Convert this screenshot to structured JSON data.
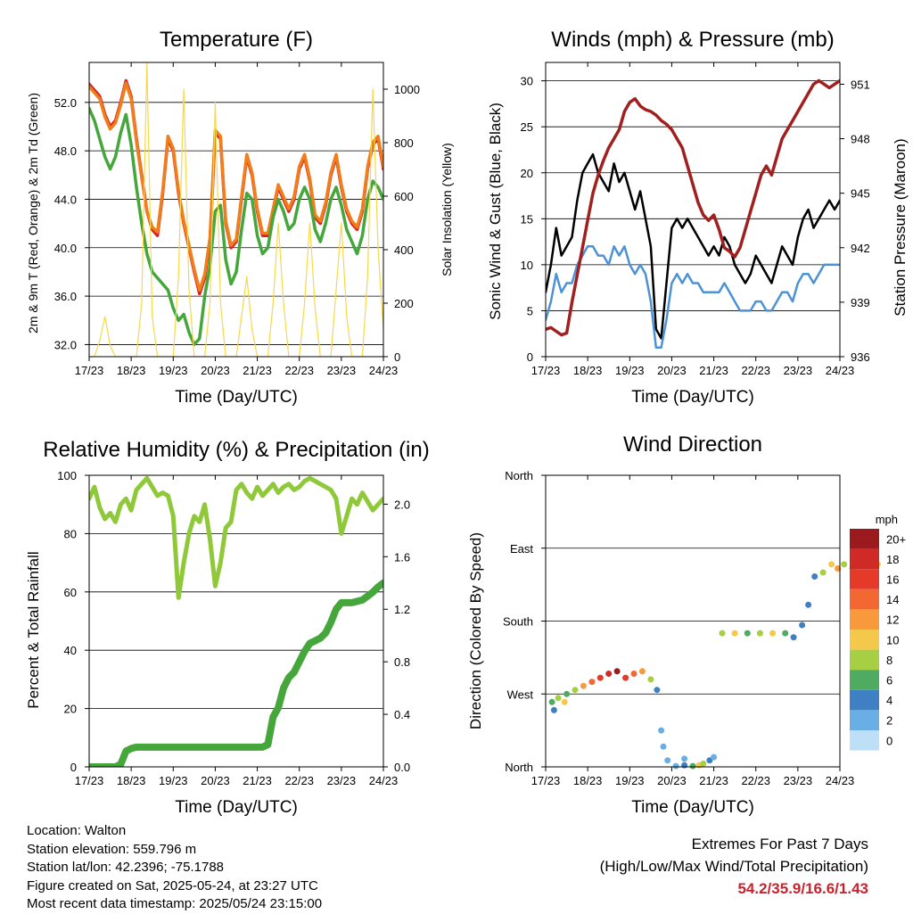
{
  "chart_data": [
    {
      "type": "line",
      "title": "Temperature (F)",
      "xlabel": "Time (Day/UTC)",
      "ylabel": "2m & 9m T (Red, Orange) & 2m Td (Green)",
      "y2label": "Solar Insolation (Yellow)",
      "x_ticks": [
        "17/23",
        "18/23",
        "19/23",
        "20/23",
        "21/23",
        "22/23",
        "23/23",
        "24/23"
      ],
      "y_ticks": [
        "32.0",
        "36.0",
        "40.0",
        "44.0",
        "48.0",
        "52.0"
      ],
      "y2_ticks": [
        "0",
        "200",
        "400",
        "600",
        "800",
        "1000"
      ],
      "ylim": [
        31.0,
        55.3
      ],
      "y2lim": [
        0,
        1100
      ],
      "grid": "horizontal",
      "series": [
        {
          "color": "#d9211f",
          "values": [
            53.5,
            53.0,
            52.5,
            51.0,
            50.0,
            50.5,
            52.0,
            53.8,
            52.5,
            49.0,
            46.0,
            43.0,
            41.5,
            41.0,
            44.5,
            49.0,
            48.0,
            44.5,
            42.0,
            40.0,
            38.0,
            36.2,
            37.5,
            40.5,
            49.5,
            49.0,
            42.0,
            40.0,
            40.5,
            44.0,
            47.5,
            46.0,
            43.0,
            41.0,
            41.0,
            43.0,
            45.0,
            44.0,
            43.0,
            44.0,
            46.5,
            47.5,
            45.5,
            42.5,
            42.0,
            43.5,
            46.0,
            47.5,
            45.0,
            43.0,
            42.0,
            41.5,
            43.0,
            46.5,
            48.5,
            49.0,
            46.5
          ]
        },
        {
          "color": "#f07e1c",
          "values": [
            53.3,
            52.8,
            52.3,
            50.8,
            49.8,
            50.3,
            51.8,
            53.6,
            52.3,
            48.8,
            45.8,
            43.0,
            41.7,
            41.3,
            44.7,
            49.2,
            48.2,
            44.7,
            42.2,
            40.2,
            38.2,
            36.5,
            37.8,
            40.8,
            49.7,
            49.2,
            42.2,
            40.2,
            40.7,
            44.2,
            47.7,
            46.2,
            43.2,
            41.2,
            41.2,
            43.2,
            45.2,
            44.2,
            43.2,
            44.2,
            46.7,
            47.7,
            45.7,
            42.7,
            42.2,
            43.7,
            46.2,
            47.7,
            45.2,
            43.2,
            42.2,
            41.7,
            43.2,
            46.7,
            48.7,
            49.2,
            46.7
          ]
        },
        {
          "color": "#45a63b",
          "values": [
            51.5,
            50.5,
            49.0,
            47.5,
            46.5,
            47.5,
            49.5,
            51.0,
            48.5,
            45.0,
            42.0,
            39.5,
            38.0,
            37.5,
            37.0,
            36.5,
            35.0,
            34.0,
            34.5,
            33.0,
            32.0,
            32.5,
            36.0,
            38.5,
            43.0,
            43.5,
            39.0,
            37.0,
            38.0,
            41.5,
            44.5,
            44.0,
            41.0,
            39.5,
            40.0,
            42.5,
            44.0,
            43.0,
            41.5,
            42.0,
            44.0,
            45.0,
            44.0,
            41.5,
            40.5,
            42.0,
            44.0,
            45.0,
            43.5,
            41.5,
            40.5,
            39.5,
            41.0,
            44.0,
            45.5,
            45.0,
            44.0
          ]
        },
        {
          "color": "#f8d84a",
          "axis": "y2",
          "values": [
            0,
            0,
            60,
            150,
            40,
            0,
            0,
            0,
            0,
            0,
            200,
            1100,
            150,
            0,
            0,
            0,
            0,
            300,
            1000,
            250,
            0,
            0,
            0,
            200,
            950,
            200,
            0,
            0,
            0,
            150,
            300,
            100,
            0,
            0,
            0,
            200,
            500,
            200,
            0,
            0,
            0,
            200,
            500,
            180,
            0,
            0,
            0,
            250,
            500,
            150,
            0,
            0,
            0,
            300,
            1000,
            400,
            100
          ]
        }
      ]
    },
    {
      "type": "line",
      "title": "Winds (mph) & Pressure (mb)",
      "xlabel": "Time (Day/UTC)",
      "ylabel": "Sonic Wind & Gust (Blue, Black)",
      "y2label": "Station Pressure (Maroon)",
      "x_ticks": [
        "17/23",
        "18/23",
        "19/23",
        "20/23",
        "21/23",
        "22/23",
        "23/23",
        "24/23"
      ],
      "y_ticks": [
        "0",
        "5",
        "10",
        "15",
        "20",
        "25",
        "30"
      ],
      "y2_ticks": [
        "936",
        "939",
        "942",
        "945",
        "948",
        "951"
      ],
      "ylim": [
        0,
        32
      ],
      "y2lim": [
        936,
        952.2
      ],
      "grid": "horizontal",
      "series": [
        {
          "color": "#000000",
          "values": [
            7,
            10,
            14,
            11,
            12,
            13,
            17,
            20,
            21,
            22,
            20,
            19,
            18,
            21,
            19,
            20,
            18,
            16,
            18,
            15,
            12,
            3,
            2,
            8,
            14,
            15,
            14,
            15,
            14,
            13,
            12,
            11,
            12,
            11,
            13,
            12,
            10,
            9,
            8,
            9,
            11,
            10,
            9,
            8,
            10,
            12,
            11,
            10,
            13,
            15,
            16,
            14,
            15,
            16,
            17,
            16,
            17
          ]
        },
        {
          "color": "#4c92d4",
          "values": [
            4,
            6,
            9,
            7,
            8,
            8,
            10,
            11,
            12,
            12,
            11,
            11,
            10,
            12,
            11,
            12,
            10,
            9,
            10,
            9,
            6,
            1,
            1,
            4,
            8,
            9,
            8,
            9,
            8,
            8,
            7,
            7,
            7,
            7,
            8,
            7,
            6,
            5,
            5,
            5,
            6,
            6,
            5,
            5,
            6,
            7,
            7,
            6,
            8,
            9,
            9,
            8,
            9,
            10,
            10,
            10,
            10
          ]
        },
        {
          "color": "#a01f1f",
          "axis": "y2",
          "values": [
            937.5,
            937.6,
            937.4,
            937.2,
            937.3,
            939.0,
            940.5,
            942.0,
            943.5,
            945.0,
            946.0,
            946.8,
            947.5,
            948.0,
            948.5,
            949.5,
            950.0,
            950.2,
            949.8,
            949.6,
            949.5,
            949.3,
            949.0,
            948.8,
            948.5,
            948.0,
            947.5,
            946.5,
            945.5,
            944.5,
            943.8,
            943.5,
            943.8,
            943.0,
            942.0,
            941.8,
            941.5,
            942.0,
            943.0,
            944.0,
            945.0,
            946.0,
            946.5,
            946.0,
            947.0,
            948.0,
            948.5,
            949.0,
            949.5,
            950.0,
            950.5,
            951.0,
            951.2,
            951.0,
            950.8,
            951.0,
            951.2
          ]
        }
      ]
    },
    {
      "type": "line",
      "title": "Relative Humidity (%) & Precipitation (in)",
      "xlabel": "Time (Day/UTC)",
      "ylabel": "Percent & Total Rainfall",
      "x_ticks": [
        "17/23",
        "18/23",
        "19/23",
        "20/23",
        "21/23",
        "22/23",
        "23/23",
        "24/23"
      ],
      "y_ticks": [
        "0",
        "20",
        "40",
        "60",
        "80",
        "100"
      ],
      "y2_ticks": [
        "0.0",
        "0.4",
        "0.8",
        "1.2",
        "1.6",
        "2.0"
      ],
      "ylim": [
        0,
        100
      ],
      "y2lim": [
        0,
        2.22
      ],
      "grid": "horizontal",
      "series": [
        {
          "color": "#8fc93a",
          "values": [
            92,
            96,
            89,
            85,
            87,
            84,
            90,
            92,
            88,
            95,
            97,
            99,
            96,
            93,
            94,
            93,
            86,
            58,
            70,
            80,
            86,
            84,
            90,
            78,
            62,
            70,
            82,
            84,
            95,
            97,
            94,
            92,
            96,
            93,
            95,
            97,
            94,
            96,
            97,
            95,
            96,
            98,
            99,
            98,
            97,
            96,
            95,
            92,
            80,
            86,
            92,
            90,
            94,
            91,
            88,
            90,
            92
          ]
        },
        {
          "color": "#45a63b",
          "axis": "y2",
          "values": [
            0.0,
            0.0,
            0.0,
            0.0,
            0.0,
            0.0,
            0.02,
            0.12,
            0.14,
            0.15,
            0.15,
            0.15,
            0.15,
            0.15,
            0.15,
            0.15,
            0.15,
            0.15,
            0.15,
            0.15,
            0.15,
            0.15,
            0.15,
            0.15,
            0.15,
            0.15,
            0.15,
            0.15,
            0.15,
            0.15,
            0.15,
            0.15,
            0.15,
            0.15,
            0.17,
            0.38,
            0.45,
            0.6,
            0.68,
            0.72,
            0.8,
            0.88,
            0.94,
            0.96,
            0.98,
            1.02,
            1.1,
            1.2,
            1.25,
            1.25,
            1.25,
            1.26,
            1.27,
            1.3,
            1.33,
            1.37,
            1.4
          ]
        }
      ]
    },
    {
      "type": "scatter",
      "title": "Wind Direction",
      "xlabel": "Time (Day/UTC)",
      "ylabel": "Direction (Colored By Speed)",
      "x_ticks": [
        "17/23",
        "18/23",
        "19/23",
        "20/23",
        "21/23",
        "22/23",
        "23/23",
        "24/23"
      ],
      "y_ticks": [
        "North",
        "West",
        "South",
        "East",
        "North"
      ],
      "ylim": [
        0,
        360
      ],
      "grid": "horizontal",
      "legend_title": "mph",
      "legend_labels": [
        "20+",
        "18",
        "16",
        "14",
        "12",
        "10",
        "8",
        "6",
        "4",
        "2",
        "0"
      ],
      "legend_colors": [
        "#9b1a1e",
        "#cf2a26",
        "#e53a2a",
        "#f26732",
        "#f89a3b",
        "#f4c84a",
        "#a6cf44",
        "#4faa62",
        "#3f7fc3",
        "#69aee5",
        "#bde0f7"
      ],
      "legend_placement": "right",
      "points": [
        [
          0.2,
          70,
          4
        ],
        [
          0.15,
          80,
          6
        ],
        [
          0.3,
          85,
          8
        ],
        [
          0.45,
          80,
          10
        ],
        [
          0.5,
          90,
          6
        ],
        [
          0.7,
          95,
          8
        ],
        [
          0.9,
          100,
          12
        ],
        [
          1.1,
          105,
          14
        ],
        [
          1.3,
          110,
          16
        ],
        [
          1.5,
          115,
          18
        ],
        [
          1.7,
          118,
          20
        ],
        [
          1.9,
          110,
          16
        ],
        [
          2.1,
          115,
          14
        ],
        [
          2.3,
          118,
          12
        ],
        [
          2.5,
          108,
          8
        ],
        [
          2.65,
          95,
          4
        ],
        [
          2.75,
          45,
          2
        ],
        [
          2.8,
          25,
          2
        ],
        [
          2.9,
          8,
          2
        ],
        [
          3.1,
          1,
          2
        ],
        [
          3.3,
          2,
          4
        ],
        [
          3.5,
          1,
          6
        ],
        [
          3.65,
          2,
          10
        ],
        [
          3.75,
          4,
          8
        ],
        [
          3.9,
          8,
          4
        ],
        [
          4.0,
          12,
          2
        ],
        [
          3.3,
          10,
          2
        ],
        [
          4.2,
          165,
          8
        ],
        [
          4.5,
          165,
          10
        ],
        [
          4.8,
          165,
          6
        ],
        [
          5.1,
          165,
          8
        ],
        [
          5.4,
          165,
          10
        ],
        [
          5.7,
          165,
          6
        ],
        [
          5.9,
          160,
          4
        ],
        [
          6.1,
          175,
          4
        ],
        [
          6.25,
          200,
          4
        ],
        [
          6.4,
          235,
          4
        ],
        [
          6.6,
          240,
          8
        ],
        [
          6.8,
          250,
          10
        ],
        [
          6.95,
          245,
          12
        ],
        [
          7.1,
          250,
          8
        ],
        [
          7.3,
          245,
          6
        ],
        [
          7.5,
          250,
          10
        ],
        [
          7.7,
          255,
          12
        ],
        [
          7.9,
          250,
          10
        ]
      ]
    }
  ],
  "info": {
    "location": "Location: Walton",
    "elevation": "Station elevation: 559.796 m",
    "latlon": "Station lat/lon: 42.2396; -75.1788",
    "created": "Figure created on Sat, 2025-05-24, at 23:27 UTC",
    "recent": "Most recent data timestamp: 2025/05/24 23:15:00"
  },
  "extremes": {
    "title": "Extremes For Past 7 Days",
    "subtitle": "(High/Low/Max Wind/Total Precipitation)",
    "values": "54.2/35.9/16.6/1.43"
  }
}
